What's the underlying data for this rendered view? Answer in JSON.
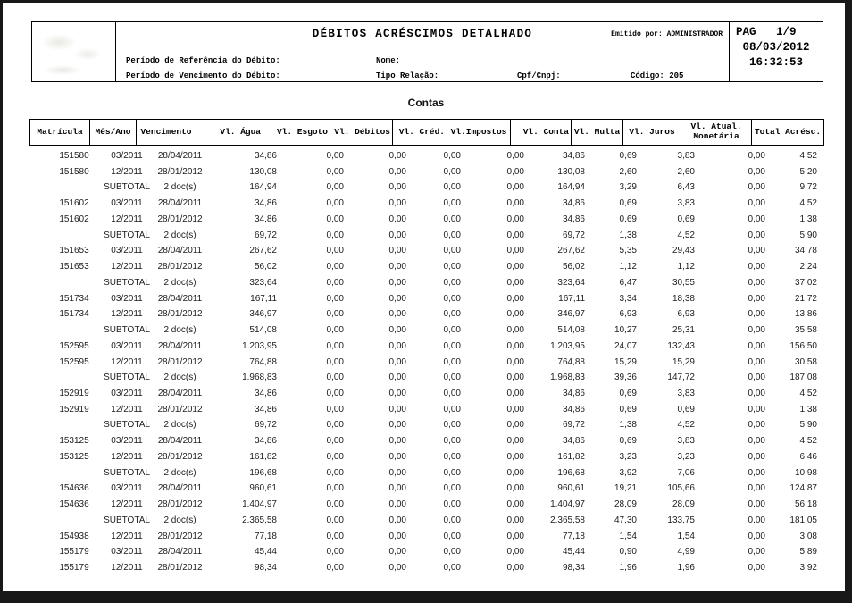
{
  "report": {
    "title": "DÉBITOS ACRÉSCIMOS DETALHADO",
    "emitted_by": "Emitido por: ADMINISTRADOR",
    "pag_line": "PAG   1/9",
    "date": "08/03/2012",
    "time": "16:32:53",
    "ref_period_label": "Período de Referência do Débito:",
    "due_period_label": "Período de Vencimento do Débito:",
    "name_label": "Nome:",
    "relation_type_label": "Tipo Relação:",
    "cpf_cnpj_label": "Cpf/Cnpj:",
    "code_label": "Código: 205"
  },
  "section_title": "Contas",
  "table": {
    "columns": [
      "Matrícula",
      "Mês/Ano",
      "Vencimento",
      "Vl. Água",
      "Vl. Esgoto",
      "Vl. Débitos",
      "Vl. Créd.",
      "Vl.Impostos",
      "Vl. Conta",
      "Vl. Multa",
      "Vl. Juros",
      "Vl. Atual. Monetária",
      "Total Acrésc."
    ],
    "rows": [
      [
        "151580",
        "03/2011",
        "28/04/2011",
        "34,86",
        "0,00",
        "0,00",
        "0,00",
        "0,00",
        "34,86",
        "0,69",
        "3,83",
        "0,00",
        "4,52"
      ],
      [
        "151580",
        "12/2011",
        "28/01/2012",
        "130,08",
        "0,00",
        "0,00",
        "0,00",
        "0,00",
        "130,08",
        "2,60",
        "2,60",
        "0,00",
        "5,20"
      ],
      [
        "",
        "SUBTOTAL",
        "2 doc(s)",
        "164,94",
        "0,00",
        "0,00",
        "0,00",
        "0,00",
        "164,94",
        "3,29",
        "6,43",
        "0,00",
        "9,72"
      ],
      [
        "151602",
        "03/2011",
        "28/04/2011",
        "34,86",
        "0,00",
        "0,00",
        "0,00",
        "0,00",
        "34,86",
        "0,69",
        "3,83",
        "0,00",
        "4,52"
      ],
      [
        "151602",
        "12/2011",
        "28/01/2012",
        "34,86",
        "0,00",
        "0,00",
        "0,00",
        "0,00",
        "34,86",
        "0,69",
        "0,69",
        "0,00",
        "1,38"
      ],
      [
        "",
        "SUBTOTAL",
        "2 doc(s)",
        "69,72",
        "0,00",
        "0,00",
        "0,00",
        "0,00",
        "69,72",
        "1,38",
        "4,52",
        "0,00",
        "5,90"
      ],
      [
        "151653",
        "03/2011",
        "28/04/2011",
        "267,62",
        "0,00",
        "0,00",
        "0,00",
        "0,00",
        "267,62",
        "5,35",
        "29,43",
        "0,00",
        "34,78"
      ],
      [
        "151653",
        "12/2011",
        "28/01/2012",
        "56,02",
        "0,00",
        "0,00",
        "0,00",
        "0,00",
        "56,02",
        "1,12",
        "1,12",
        "0,00",
        "2,24"
      ],
      [
        "",
        "SUBTOTAL",
        "2 doc(s)",
        "323,64",
        "0,00",
        "0,00",
        "0,00",
        "0,00",
        "323,64",
        "6,47",
        "30,55",
        "0,00",
        "37,02"
      ],
      [
        "151734",
        "03/2011",
        "28/04/2011",
        "167,11",
        "0,00",
        "0,00",
        "0,00",
        "0,00",
        "167,11",
        "3,34",
        "18,38",
        "0,00",
        "21,72"
      ],
      [
        "151734",
        "12/2011",
        "28/01/2012",
        "346,97",
        "0,00",
        "0,00",
        "0,00",
        "0,00",
        "346,97",
        "6,93",
        "6,93",
        "0,00",
        "13,86"
      ],
      [
        "",
        "SUBTOTAL",
        "2 doc(s)",
        "514,08",
        "0,00",
        "0,00",
        "0,00",
        "0,00",
        "514,08",
        "10,27",
        "25,31",
        "0,00",
        "35,58"
      ],
      [
        "152595",
        "03/2011",
        "28/04/2011",
        "1.203,95",
        "0,00",
        "0,00",
        "0,00",
        "0,00",
        "1.203,95",
        "24,07",
        "132,43",
        "0,00",
        "156,50"
      ],
      [
        "152595",
        "12/2011",
        "28/01/2012",
        "764,88",
        "0,00",
        "0,00",
        "0,00",
        "0,00",
        "764,88",
        "15,29",
        "15,29",
        "0,00",
        "30,58"
      ],
      [
        "",
        "SUBTOTAL",
        "2 doc(s)",
        "1.968,83",
        "0,00",
        "0,00",
        "0,00",
        "0,00",
        "1.968,83",
        "39,36",
        "147,72",
        "0,00",
        "187,08"
      ],
      [
        "152919",
        "03/2011",
        "28/04/2011",
        "34,86",
        "0,00",
        "0,00",
        "0,00",
        "0,00",
        "34,86",
        "0,69",
        "3,83",
        "0,00",
        "4,52"
      ],
      [
        "152919",
        "12/2011",
        "28/01/2012",
        "34,86",
        "0,00",
        "0,00",
        "0,00",
        "0,00",
        "34,86",
        "0,69",
        "0,69",
        "0,00",
        "1,38"
      ],
      [
        "",
        "SUBTOTAL",
        "2 doc(s)",
        "69,72",
        "0,00",
        "0,00",
        "0,00",
        "0,00",
        "69,72",
        "1,38",
        "4,52",
        "0,00",
        "5,90"
      ],
      [
        "153125",
        "03/2011",
        "28/04/2011",
        "34,86",
        "0,00",
        "0,00",
        "0,00",
        "0,00",
        "34,86",
        "0,69",
        "3,83",
        "0,00",
        "4,52"
      ],
      [
        "153125",
        "12/2011",
        "28/01/2012",
        "161,82",
        "0,00",
        "0,00",
        "0,00",
        "0,00",
        "161,82",
        "3,23",
        "3,23",
        "0,00",
        "6,46"
      ],
      [
        "",
        "SUBTOTAL",
        "2 doc(s)",
        "196,68",
        "0,00",
        "0,00",
        "0,00",
        "0,00",
        "196,68",
        "3,92",
        "7,06",
        "0,00",
        "10,98"
      ],
      [
        "154636",
        "03/2011",
        "28/04/2011",
        "960,61",
        "0,00",
        "0,00",
        "0,00",
        "0,00",
        "960,61",
        "19,21",
        "105,66",
        "0,00",
        "124,87"
      ],
      [
        "154636",
        "12/2011",
        "28/01/2012",
        "1.404,97",
        "0,00",
        "0,00",
        "0,00",
        "0,00",
        "1.404,97",
        "28,09",
        "28,09",
        "0,00",
        "56,18"
      ],
      [
        "",
        "SUBTOTAL",
        "2 doc(s)",
        "2.365,58",
        "0,00",
        "0,00",
        "0,00",
        "0,00",
        "2.365,58",
        "47,30",
        "133,75",
        "0,00",
        "181,05"
      ],
      [
        "154938",
        "12/2011",
        "28/01/2012",
        "77,18",
        "0,00",
        "0,00",
        "0,00",
        "0,00",
        "77,18",
        "1,54",
        "1,54",
        "0,00",
        "3,08"
      ],
      [
        "155179",
        "03/2011",
        "28/04/2011",
        "45,44",
        "0,00",
        "0,00",
        "0,00",
        "0,00",
        "45,44",
        "0,90",
        "4,99",
        "0,00",
        "5,89"
      ],
      [
        "155179",
        "12/2011",
        "28/01/2012",
        "98,34",
        "0,00",
        "0,00",
        "0,00",
        "0,00",
        "98,34",
        "1,96",
        "1,96",
        "0,00",
        "3,92"
      ]
    ]
  }
}
